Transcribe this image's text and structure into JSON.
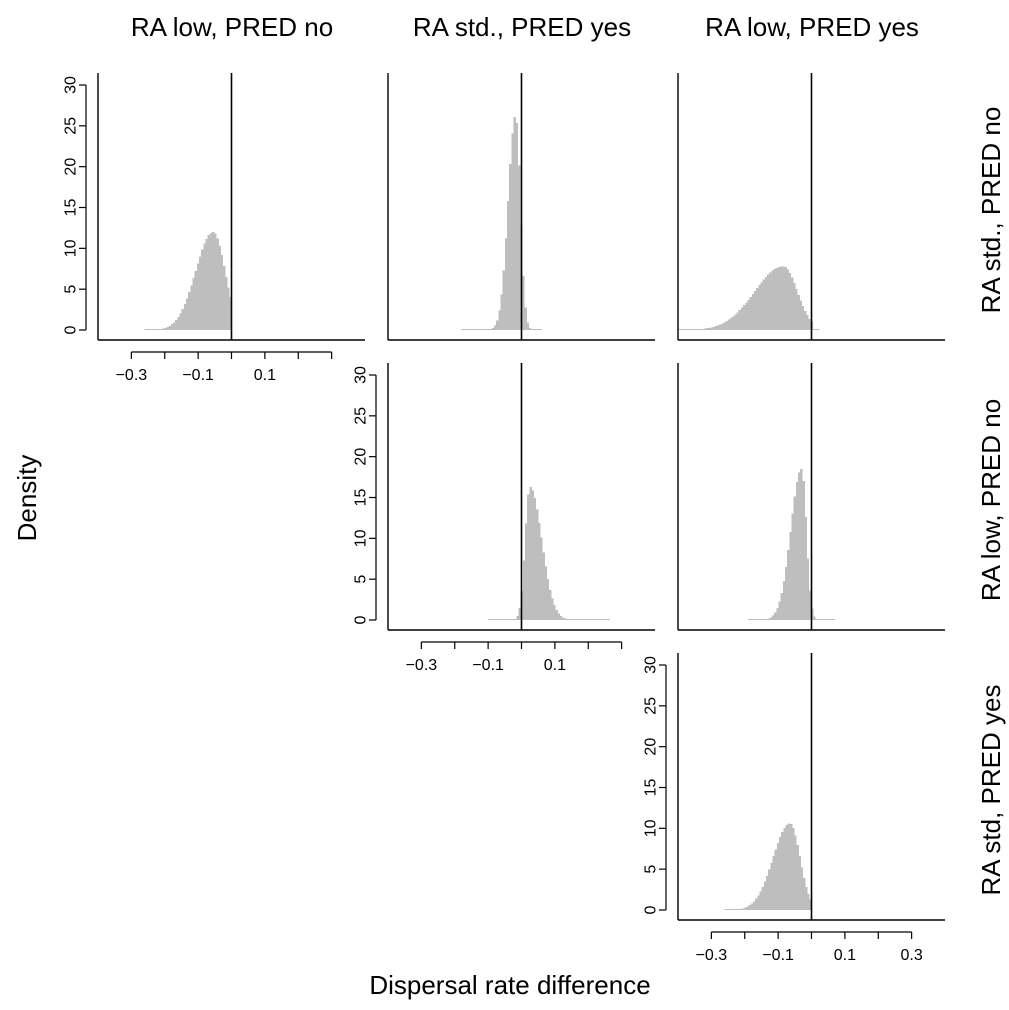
{
  "column_titles": [
    "RA low, PRED no",
    "RA std., PRED yes",
    "RA low, PRED yes"
  ],
  "row_labels": [
    "RA std., PRED no",
    "RA low, PRED no",
    "RA std, PRED yes"
  ],
  "ylabel": "Density",
  "xlabel": "Dispersal rate difference",
  "colors": {
    "fill": "#bebebe",
    "axis": "#000000"
  },
  "chart_data": [
    {
      "type": "area",
      "row": "RA std., PRED no",
      "column": "RA low, PRED no",
      "xlim": [
        -0.4,
        0.4
      ],
      "ylim": [
        0,
        30
      ],
      "yticks": [
        0,
        5,
        10,
        15,
        20,
        25,
        30
      ],
      "xticks": [
        -0.3,
        -0.2,
        -0.1,
        0.0,
        0.1,
        0.2,
        0.3
      ],
      "xtick_labels": [
        "-0.3",
        "-0.1",
        "0.1"
      ],
      "show_x_axis": true,
      "show_y_axis": true,
      "vline_x": 0,
      "density": {
        "range": [
          -0.26,
          0.0
        ],
        "peak_x": -0.055,
        "peak_y": 12.0,
        "sigma_left": 0.052,
        "sigma_right": 0.035
      }
    },
    {
      "type": "area",
      "row": "RA std., PRED no",
      "column": "RA std., PRED yes",
      "xlim": [
        -0.4,
        0.4
      ],
      "ylim": [
        0,
        30
      ],
      "show_x_axis": false,
      "show_y_axis": false,
      "vline_x": 0,
      "density": {
        "range": [
          -0.18,
          0.06
        ],
        "peak_x": -0.018,
        "peak_y": 26.3,
        "sigma_left": 0.022,
        "sigma_right": 0.014
      }
    },
    {
      "type": "area",
      "row": "RA std., PRED no",
      "column": "RA low, PRED yes",
      "xlim": [
        -0.4,
        0.4
      ],
      "ylim": [
        0,
        30
      ],
      "show_x_axis": false,
      "show_y_axis": false,
      "vline_x": 0,
      "density": {
        "range": [
          -0.4,
          0.02
        ],
        "peak_x": -0.085,
        "peak_y": 7.8,
        "sigma_left": 0.085,
        "sigma_right": 0.042,
        "cut_x": 0.0
      }
    },
    {
      "type": "area",
      "row": "RA low, PRED no",
      "column": "RA std., PRED yes",
      "xlim": [
        -0.4,
        0.4
      ],
      "ylim": [
        0,
        30
      ],
      "yticks": [
        0,
        5,
        10,
        15,
        20,
        25,
        30
      ],
      "xticks": [
        -0.3,
        -0.2,
        -0.1,
        0.0,
        0.1,
        0.2,
        0.3
      ],
      "xtick_labels": [
        "-0.3",
        "-0.1",
        "0.1"
      ],
      "show_x_axis": true,
      "show_y_axis": true,
      "vline_x": 0,
      "density": {
        "range": [
          -0.1,
          0.26
        ],
        "peak_x": 0.025,
        "peak_y": 16.3,
        "sigma_left": 0.014,
        "sigma_right": 0.035
      }
    },
    {
      "type": "area",
      "row": "RA low, PRED no",
      "column": "RA low, PRED yes",
      "xlim": [
        -0.4,
        0.4
      ],
      "ylim": [
        0,
        30
      ],
      "show_x_axis": false,
      "show_y_axis": false,
      "vline_x": 0,
      "density": {
        "range": [
          -0.19,
          0.07
        ],
        "peak_x": -0.03,
        "peak_y": 18.5,
        "sigma_left": 0.032,
        "sigma_right": 0.014
      }
    },
    {
      "type": "area",
      "row": "RA std, PRED yes",
      "column": "RA low, PRED yes",
      "xlim": [
        -0.4,
        0.4
      ],
      "ylim": [
        0,
        30
      ],
      "yticks": [
        0,
        5,
        10,
        15,
        20,
        25,
        30
      ],
      "xticks": [
        -0.3,
        -0.2,
        -0.1,
        0.0,
        0.1,
        0.2,
        0.3
      ],
      "xtick_labels": [
        "-0.3",
        "-0.1",
        "0.1",
        "0.3"
      ],
      "show_x_axis": true,
      "show_y_axis": true,
      "vline_x": 0,
      "density": {
        "range": [
          -0.26,
          0.0
        ],
        "peak_x": -0.065,
        "peak_y": 10.6,
        "sigma_left": 0.05,
        "sigma_right": 0.03
      }
    }
  ]
}
